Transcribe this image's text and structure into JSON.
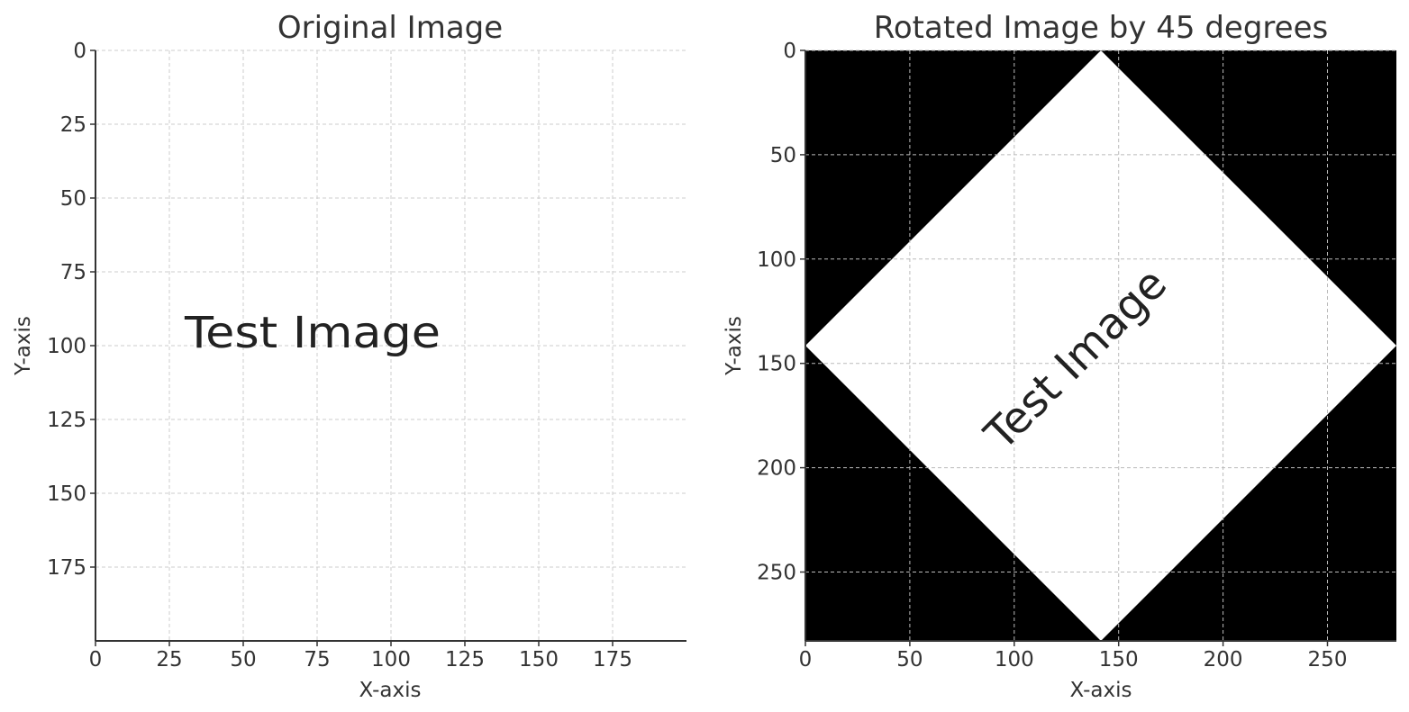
{
  "chart_data": [
    {
      "type": "image",
      "title": "Original Image",
      "xlabel": "X-axis",
      "ylabel": "Y-axis",
      "xlim": [
        0,
        200
      ],
      "ylim": [
        200,
        0
      ],
      "xticks": [
        0,
        25,
        50,
        75,
        100,
        125,
        150,
        175
      ],
      "yticks": [
        0,
        25,
        50,
        75,
        100,
        125,
        150,
        175
      ],
      "grid": true,
      "image_text": "Test Image",
      "background": "#ffffff"
    },
    {
      "type": "image",
      "title": "Rotated Image by 45 degrees",
      "xlabel": "X-axis",
      "ylabel": "Y-axis",
      "xlim": [
        0,
        283
      ],
      "ylim": [
        283,
        0
      ],
      "xticks": [
        0,
        50,
        100,
        150,
        200,
        250
      ],
      "yticks": [
        0,
        50,
        100,
        150,
        200,
        250
      ],
      "grid": true,
      "image_text": "Test Image",
      "rotation_degrees": 45,
      "background": "#000000",
      "foreground": "#ffffff"
    }
  ]
}
